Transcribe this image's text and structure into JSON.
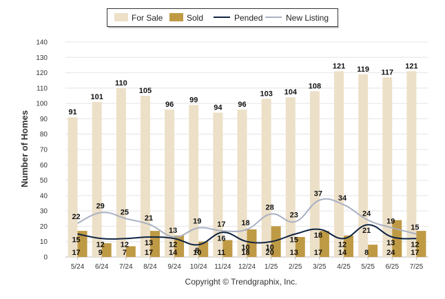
{
  "chart_data": {
    "type": "bar",
    "ylabel": "Number of Homes",
    "xlabel": "",
    "ylim": [
      0,
      140
    ],
    "yticks": [
      0,
      10,
      20,
      30,
      40,
      50,
      60,
      70,
      80,
      90,
      100,
      110,
      120,
      130,
      140
    ],
    "grid": true,
    "legend_position": "top-center",
    "categories": [
      "5/24",
      "6/24",
      "7/24",
      "8/24",
      "9/24",
      "10/24",
      "11/24",
      "12/24",
      "1/25",
      "2/25",
      "3/25",
      "4/25",
      "5/25",
      "6/25",
      "7/25"
    ],
    "series": [
      {
        "name": "For Sale",
        "type": "bar",
        "color": "#ede0c8",
        "values": [
          91,
          101,
          110,
          105,
          96,
          99,
          94,
          96,
          103,
          104,
          108,
          121,
          119,
          117,
          121
        ]
      },
      {
        "name": "Sold",
        "type": "bar",
        "color": "#bf9a45",
        "values": [
          17,
          9,
          7,
          17,
          14,
          10,
          11,
          18,
          20,
          13,
          17,
          14,
          8,
          24,
          17
        ]
      },
      {
        "name": "Pended",
        "type": "line",
        "color": "#0d2240",
        "values": [
          15,
          12,
          12,
          13,
          12,
          8,
          16,
          10,
          10,
          15,
          18,
          12,
          21,
          13,
          12
        ]
      },
      {
        "name": "New Listing",
        "type": "line",
        "color": "#a9b0c2",
        "values": [
          22,
          29,
          25,
          21,
          13,
          19,
          17,
          18,
          28,
          23,
          37,
          34,
          24,
          19,
          15
        ]
      }
    ]
  },
  "footer": "Copyright © Trendgraphix, Inc."
}
